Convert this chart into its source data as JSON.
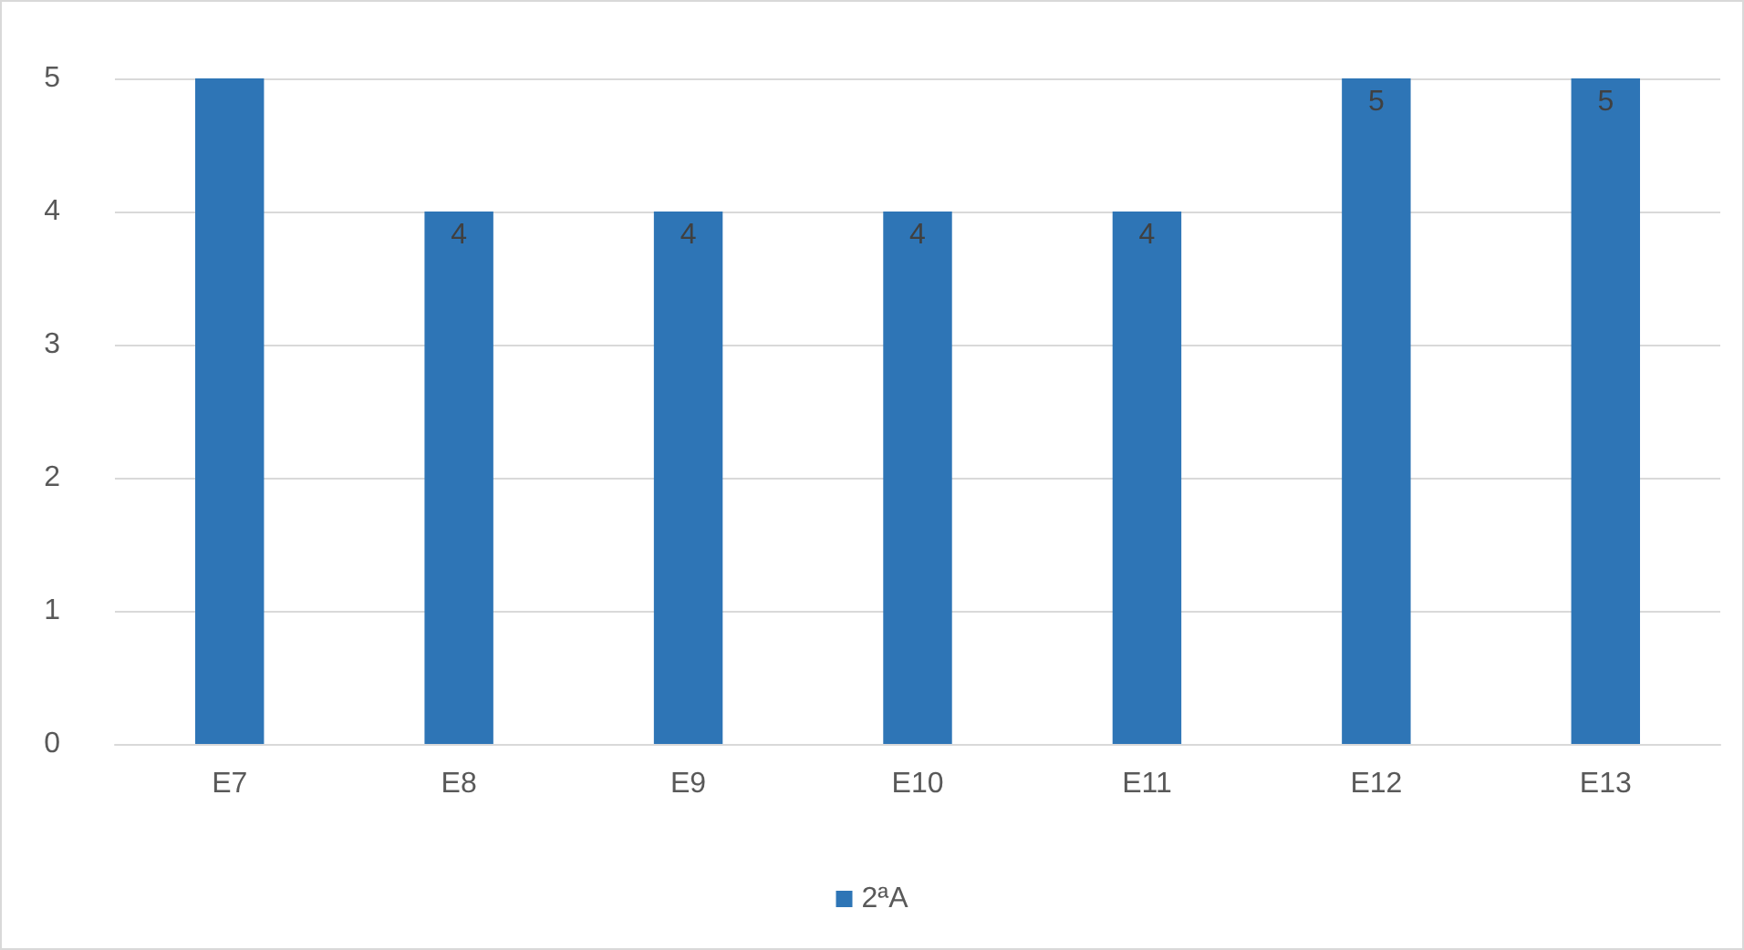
{
  "chart_data": {
    "type": "bar",
    "categories": [
      "E7",
      "E8",
      "E9",
      "E10",
      "E11",
      "E12",
      "E13"
    ],
    "series": [
      {
        "name": "2ªA",
        "color": "#2e75b6",
        "values": [
          5,
          4,
          4,
          4,
          4,
          5,
          5
        ],
        "value_labels": [
          null,
          "4",
          "4",
          "4",
          "4",
          "5",
          "5"
        ]
      }
    ],
    "ylim": [
      0,
      5
    ],
    "yticks": [
      0,
      1,
      2,
      3,
      4,
      5
    ],
    "grid": "y",
    "legend": "bottom"
  }
}
